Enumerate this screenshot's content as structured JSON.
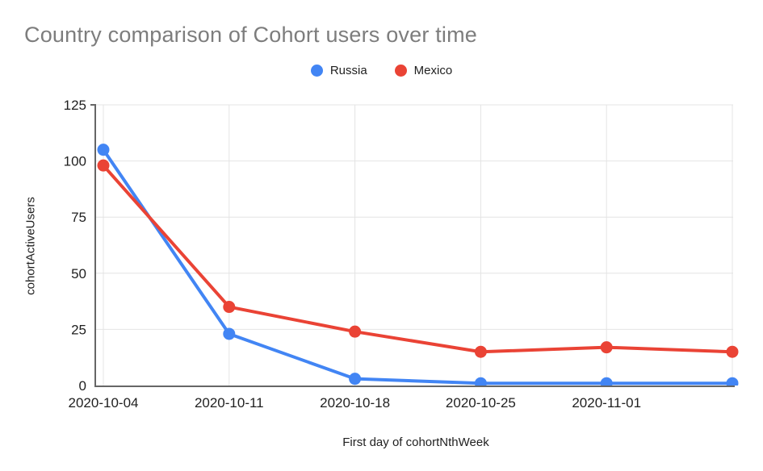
{
  "page": {
    "background": "#ffffff"
  },
  "chart_data": {
    "type": "line",
    "title": "Country comparison of Cohort users over time",
    "xlabel": "First day of cohortNthWeek",
    "ylabel": "cohortActiveUsers",
    "x_tick_labels": [
      "2020-10-04",
      "2020-10-11",
      "2020-10-18",
      "2020-10-25",
      "2020-11-01"
    ],
    "num_points": 6,
    "series": [
      {
        "name": "Russia",
        "color": "#4285F4",
        "values": [
          105,
          23,
          3,
          1,
          1,
          1
        ]
      },
      {
        "name": "Mexico",
        "color": "#EA4335",
        "values": [
          98,
          35,
          24,
          15,
          17,
          15
        ]
      }
    ],
    "ylim": [
      0,
      125
    ],
    "yticks": [
      0,
      25,
      50,
      75,
      100,
      125
    ],
    "grid": true,
    "legend_position": "top-center",
    "marker": "circle",
    "colors": {
      "grid": "#e4e4e4",
      "axis": "#666666",
      "tick_label": "#1f1f1f",
      "title": "#7d7d7d"
    }
  }
}
